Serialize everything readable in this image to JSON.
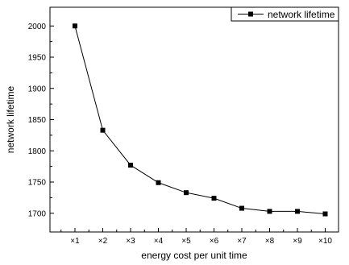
{
  "chart_data": {
    "type": "line",
    "categories": [
      "×1",
      "×2",
      "×3",
      "×4",
      "×5",
      "×6",
      "×7",
      "×8",
      "×9",
      "×10"
    ],
    "series": [
      {
        "name": "network lifetime",
        "values": [
          2000,
          1833,
          1777,
          1749,
          1733,
          1724,
          1708,
          1703,
          1703,
          1699
        ],
        "marker": "square",
        "color": "#000000"
      }
    ],
    "xlabel": "energy cost per unit time",
    "ylabel": "network lifetime",
    "ylim": [
      1670,
      2030
    ],
    "yticks": [
      1700,
      1750,
      1800,
      1850,
      1900,
      1950,
      2000
    ],
    "grid": false,
    "legend_position": "top-right"
  }
}
